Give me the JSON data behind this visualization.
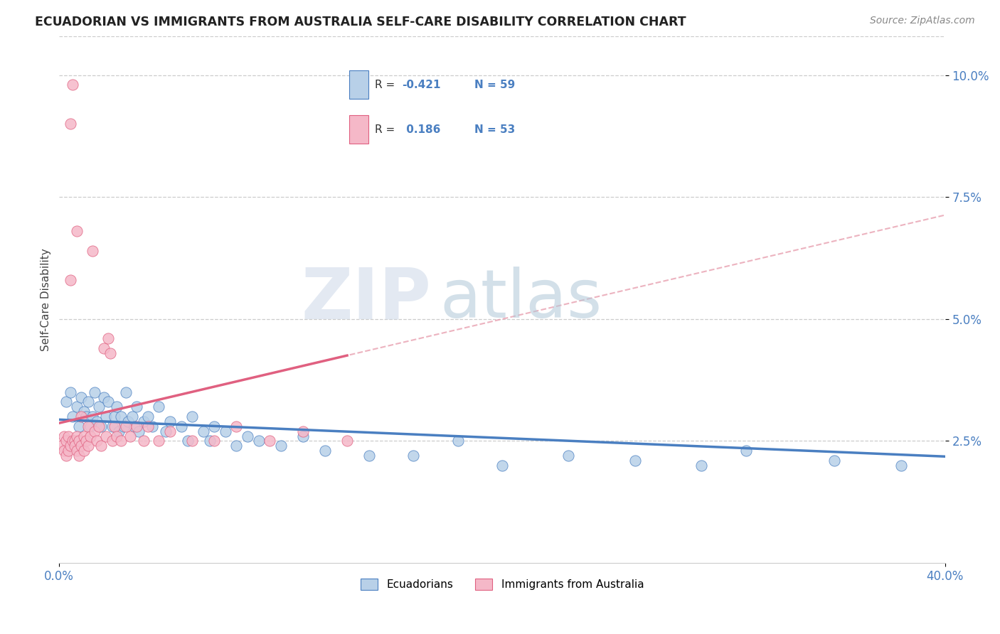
{
  "title": "ECUADORIAN VS IMMIGRANTS FROM AUSTRALIA SELF-CARE DISABILITY CORRELATION CHART",
  "source": "Source: ZipAtlas.com",
  "ylabel": "Self-Care Disability",
  "ytick_vals": [
    0.025,
    0.05,
    0.075,
    0.1
  ],
  "ytick_labels": [
    "2.5%",
    "5.0%",
    "7.5%",
    "10.0%"
  ],
  "xlim": [
    0.0,
    0.4
  ],
  "ylim": [
    0.0,
    0.108
  ],
  "color_blue": "#b8d0e8",
  "color_pink": "#f5b8c8",
  "color_blue_line": "#4a7fc1",
  "color_pink_line": "#e06080",
  "color_dashed": "#e8a0b0",
  "watermark_zip": "ZIP",
  "watermark_atlas": "atlas",
  "blue_r": -0.421,
  "blue_n": 59,
  "pink_r": 0.186,
  "pink_n": 53,
  "blue_scatter_x": [
    0.003,
    0.005,
    0.006,
    0.008,
    0.009,
    0.01,
    0.011,
    0.012,
    0.013,
    0.014,
    0.015,
    0.016,
    0.017,
    0.018,
    0.019,
    0.02,
    0.021,
    0.022,
    0.024,
    0.025,
    0.026,
    0.027,
    0.028,
    0.029,
    0.03,
    0.031,
    0.033,
    0.034,
    0.035,
    0.036,
    0.038,
    0.04,
    0.042,
    0.045,
    0.048,
    0.05,
    0.055,
    0.058,
    0.06,
    0.065,
    0.068,
    0.07,
    0.075,
    0.08,
    0.085,
    0.09,
    0.1,
    0.11,
    0.12,
    0.14,
    0.16,
    0.18,
    0.2,
    0.23,
    0.26,
    0.29,
    0.31,
    0.35,
    0.38
  ],
  "blue_scatter_y": [
    0.033,
    0.035,
    0.03,
    0.032,
    0.028,
    0.034,
    0.031,
    0.03,
    0.033,
    0.028,
    0.03,
    0.035,
    0.029,
    0.032,
    0.028,
    0.034,
    0.03,
    0.033,
    0.028,
    0.03,
    0.032,
    0.027,
    0.03,
    0.028,
    0.035,
    0.029,
    0.03,
    0.028,
    0.032,
    0.027,
    0.029,
    0.03,
    0.028,
    0.032,
    0.027,
    0.029,
    0.028,
    0.025,
    0.03,
    0.027,
    0.025,
    0.028,
    0.027,
    0.024,
    0.026,
    0.025,
    0.024,
    0.026,
    0.023,
    0.022,
    0.022,
    0.025,
    0.02,
    0.022,
    0.021,
    0.02,
    0.023,
    0.021,
    0.02
  ],
  "pink_scatter_x": [
    0.001,
    0.002,
    0.002,
    0.003,
    0.003,
    0.004,
    0.004,
    0.005,
    0.005,
    0.006,
    0.006,
    0.007,
    0.007,
    0.008,
    0.008,
    0.009,
    0.009,
    0.01,
    0.01,
    0.011,
    0.011,
    0.012,
    0.013,
    0.013,
    0.014,
    0.015,
    0.016,
    0.017,
    0.018,
    0.019,
    0.02,
    0.021,
    0.022,
    0.023,
    0.024,
    0.025,
    0.026,
    0.028,
    0.03,
    0.032,
    0.035,
    0.038,
    0.04,
    0.045,
    0.05,
    0.06,
    0.07,
    0.08,
    0.095,
    0.11,
    0.13,
    0.005,
    0.008
  ],
  "pink_scatter_y": [
    0.024,
    0.026,
    0.023,
    0.025,
    0.022,
    0.026,
    0.023,
    0.09,
    0.024,
    0.098,
    0.025,
    0.025,
    0.024,
    0.026,
    0.023,
    0.025,
    0.022,
    0.03,
    0.024,
    0.026,
    0.023,
    0.025,
    0.028,
    0.024,
    0.026,
    0.064,
    0.027,
    0.025,
    0.028,
    0.024,
    0.044,
    0.026,
    0.046,
    0.043,
    0.025,
    0.028,
    0.026,
    0.025,
    0.028,
    0.026,
    0.028,
    0.025,
    0.028,
    0.025,
    0.027,
    0.025,
    0.025,
    0.028,
    0.025,
    0.027,
    0.025,
    0.058,
    0.068
  ]
}
